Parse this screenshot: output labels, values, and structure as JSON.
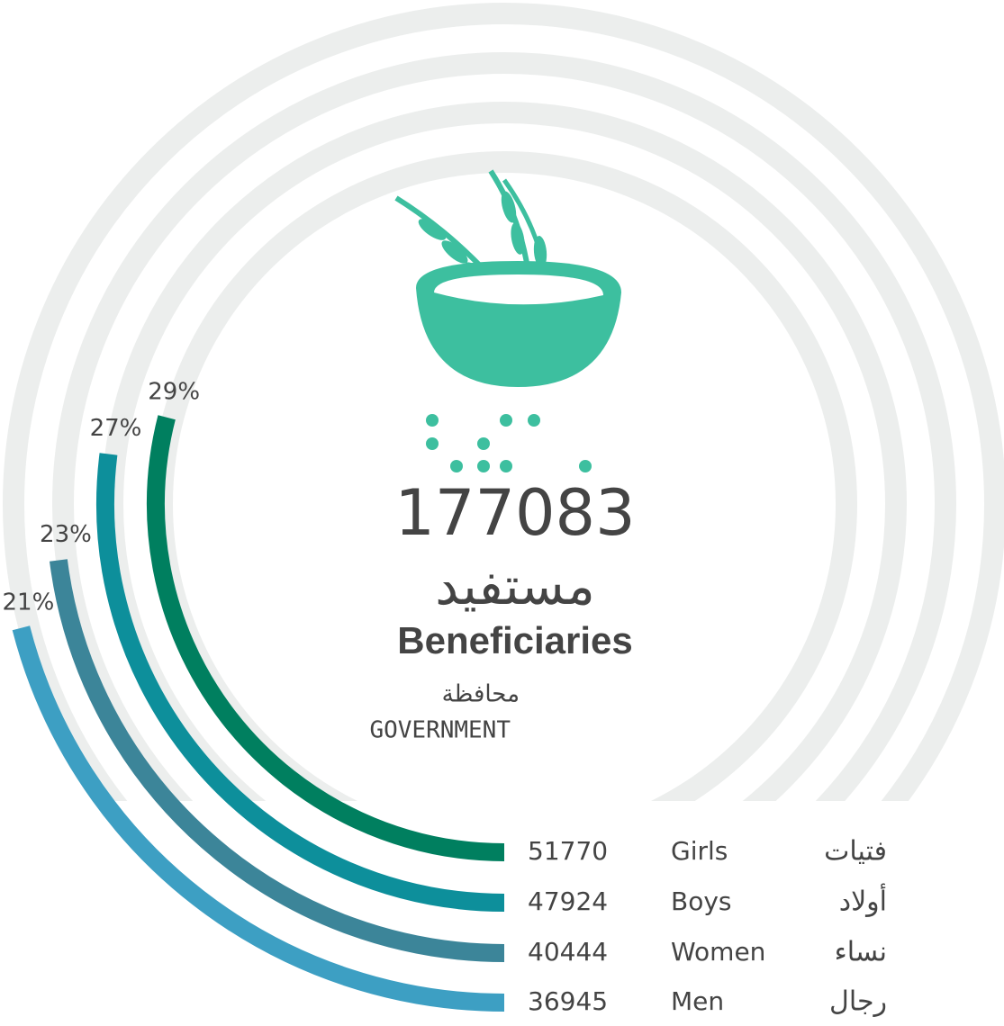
{
  "chart_data": {
    "type": "radial_bar",
    "total": 177083,
    "total_label": "مستفيد",
    "title": "Beneficiaries",
    "subtitle_ar": "محافظة",
    "subtitle": "GOVERNMENT",
    "categories": [
      "Girls",
      "Boys",
      "Women",
      "Men"
    ],
    "categories_ar": [
      "فتيات",
      "أولاد",
      "نساء",
      "رجال"
    ],
    "values": [
      51770,
      47924,
      40444,
      36945
    ],
    "shares": [
      29,
      27,
      23,
      21
    ],
    "share_labels": [
      "29%",
      "27%",
      "23%",
      "21%"
    ],
    "colors": [
      "#007f5f",
      "#0d8f9b",
      "#3c8599",
      "#3d9fc3"
    ],
    "ring_color": "#eceeed",
    "icon_color": "#3dbf9f"
  }
}
